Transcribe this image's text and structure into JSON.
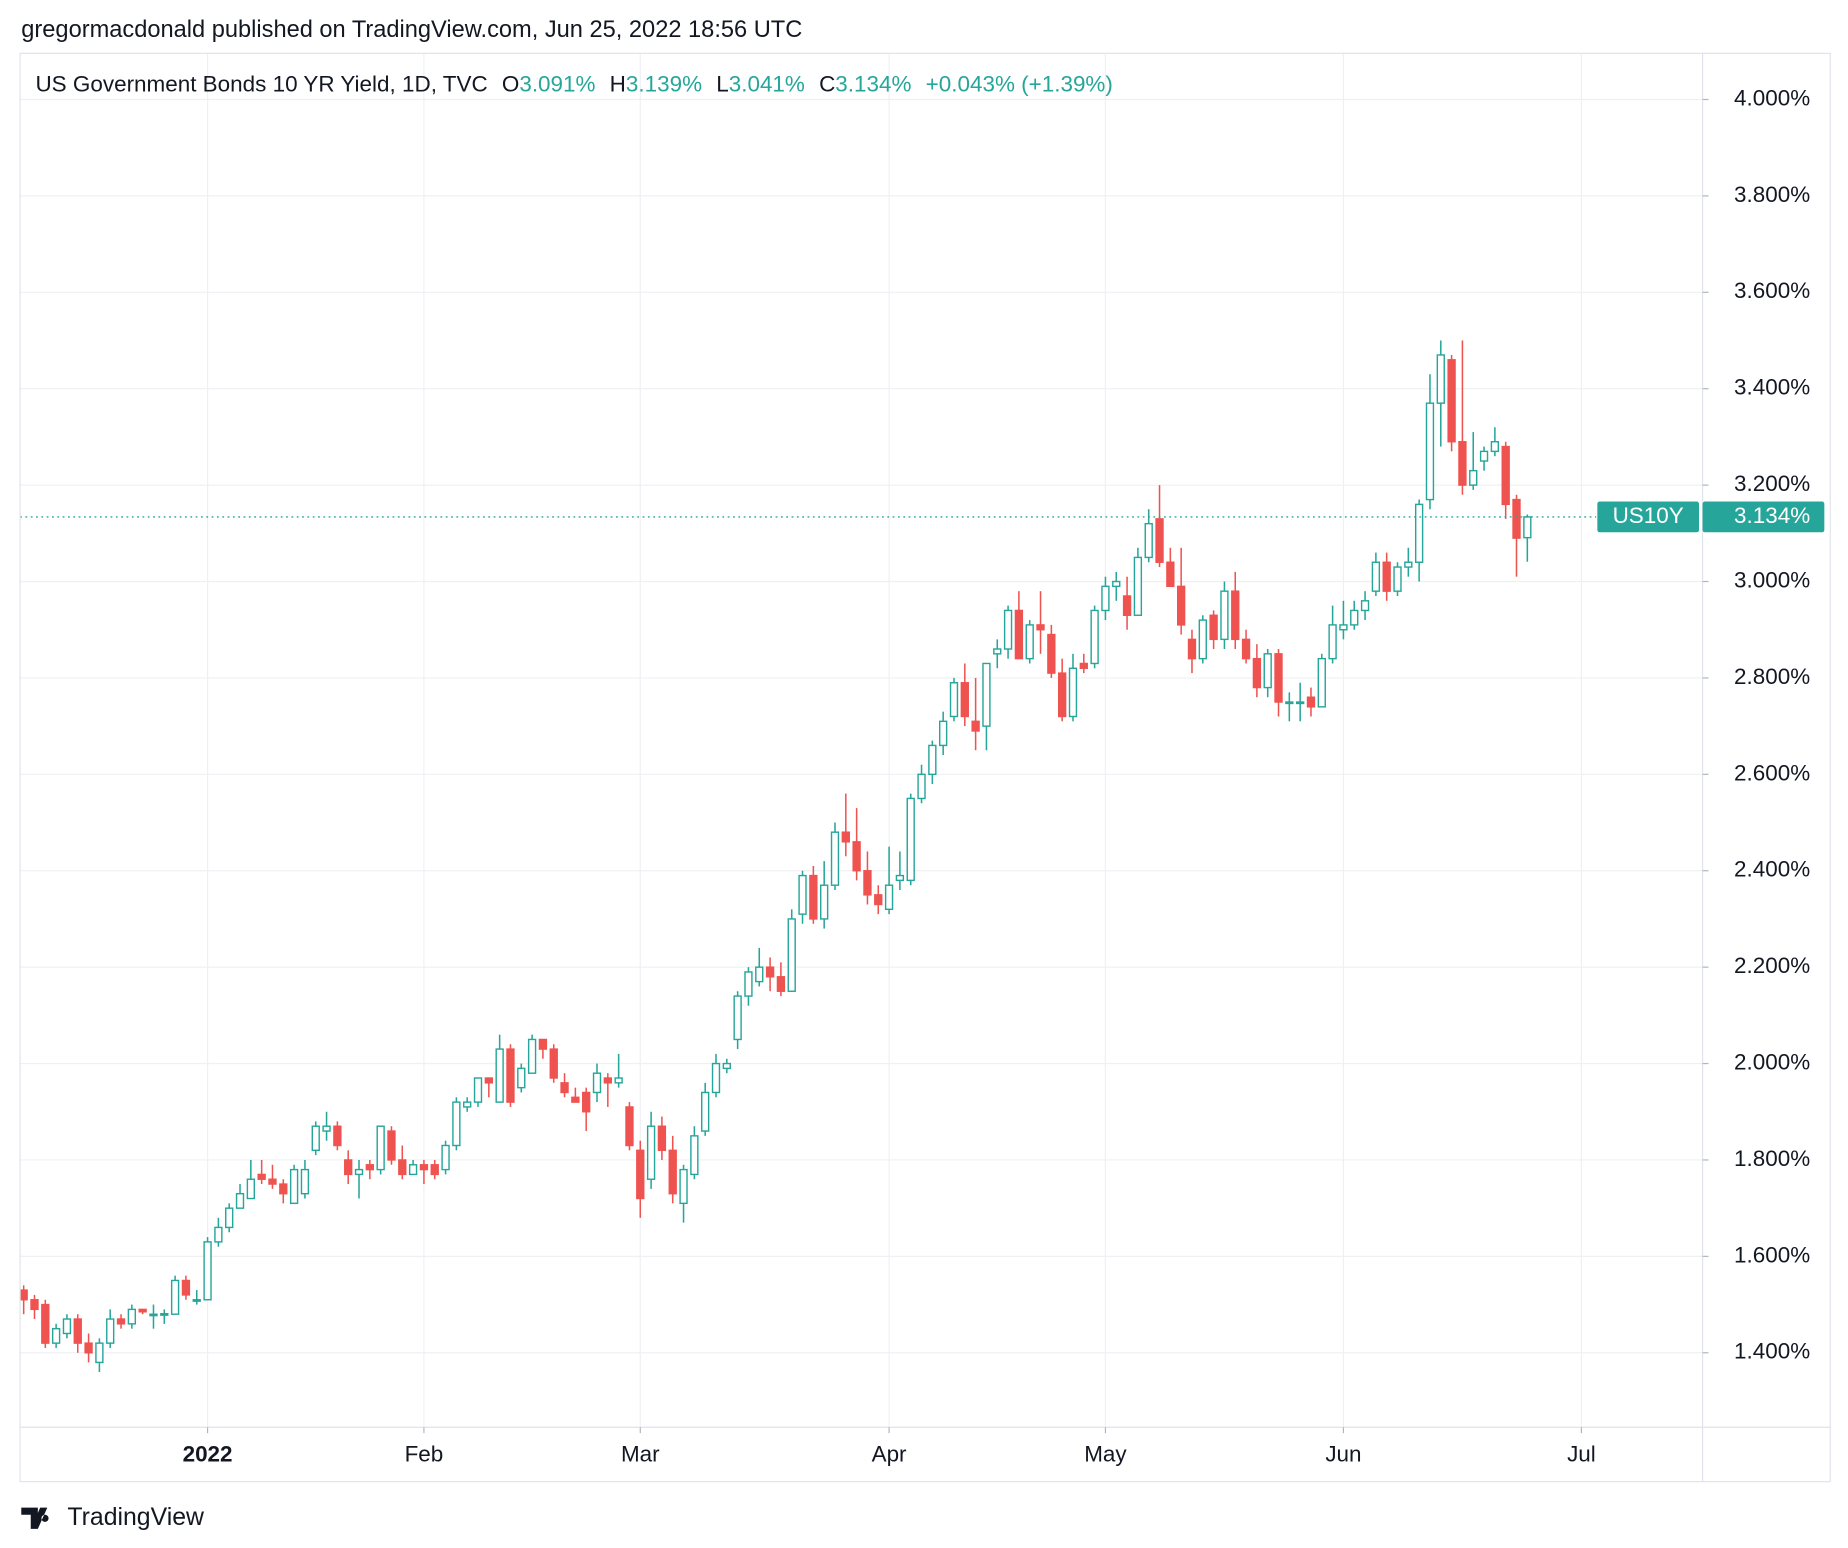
{
  "published": "gregormacdonald published on TradingView.com, Jun 25, 2022 18:56 UTC",
  "footer": "TradingView",
  "legend": {
    "symbol": "US Government Bonds 10 YR Yield, 1D, TVC",
    "open_label": "O",
    "open": "3.091%",
    "high_label": "H",
    "high": "3.139%",
    "low_label": "L",
    "low": "3.041%",
    "close_label": "C",
    "close": "3.134%",
    "change": "+0.043% (+1.39%)"
  },
  "chart_data": {
    "type": "candlestick",
    "up_color": "#26a69a",
    "down_color": "#ef5350",
    "grid": true,
    "xlim": [
      -0.33,
      155.2
    ],
    "xticks": [
      {
        "value": 17,
        "label": "2022"
      },
      {
        "value": 37,
        "label": "Feb"
      },
      {
        "value": 57,
        "label": "Mar"
      },
      {
        "value": 80,
        "label": "Apr"
      },
      {
        "value": 100,
        "label": "May"
      },
      {
        "value": 122,
        "label": "Jun"
      },
      {
        "value": 144,
        "label": "Jul"
      }
    ],
    "ylim": [
      1.2455,
      4.0957
    ],
    "yticks": [
      {
        "value": 1.4,
        "label": "1.400%"
      },
      {
        "value": 1.6,
        "label": "1.600%"
      },
      {
        "value": 1.8,
        "label": "1.800%"
      },
      {
        "value": 2.0,
        "label": "2.000%"
      },
      {
        "value": 2.2,
        "label": "2.200%"
      },
      {
        "value": 2.4,
        "label": "2.400%"
      },
      {
        "value": 2.6,
        "label": "2.600%"
      },
      {
        "value": 2.8,
        "label": "2.800%"
      },
      {
        "value": 3.0,
        "label": "3.000%"
      },
      {
        "value": 3.2,
        "label": "3.200%"
      },
      {
        "value": 3.4,
        "label": "3.400%"
      },
      {
        "value": 3.6,
        "label": "3.600%"
      },
      {
        "value": 3.8,
        "label": "3.800%"
      },
      {
        "value": 4.0,
        "label": "4.000%"
      }
    ],
    "last_price": {
      "name": "US10Y",
      "value": 3.134,
      "value_label": "3.134%",
      "color": "#26a69a"
    },
    "series": [
      {
        "name": "US10Y",
        "open": [
          1.53,
          1.51,
          1.5,
          1.42,
          1.44,
          1.47,
          1.42,
          1.38,
          1.42,
          1.47,
          1.46,
          1.49,
          1.48,
          1.48,
          1.48,
          1.55,
          1.51,
          1.51,
          1.63,
          1.66,
          1.7,
          1.72,
          1.77,
          1.76,
          1.75,
          1.71,
          1.73,
          1.82,
          1.86,
          1.87,
          1.8,
          1.77,
          1.79,
          1.78,
          1.86,
          1.8,
          1.77,
          1.79,
          1.79,
          1.78,
          1.83,
          1.91,
          1.92,
          1.97,
          1.92,
          2.03,
          1.95,
          1.98,
          2.05,
          2.03,
          1.96,
          1.93,
          1.94,
          1.94,
          1.97,
          1.96,
          1.91,
          1.82,
          1.76,
          1.87,
          1.82,
          1.71,
          1.77,
          1.86,
          1.94,
          1.99,
          2.05,
          2.14,
          2.17,
          2.2,
          2.18,
          2.15,
          2.31,
          2.39,
          2.3,
          2.37,
          2.48,
          2.46,
          2.4,
          2.35,
          2.32,
          2.38,
          2.38,
          2.55,
          2.6,
          2.66,
          2.72,
          2.79,
          2.71,
          2.7,
          2.85,
          2.86,
          2.94,
          2.84,
          2.91,
          2.89,
          2.81,
          2.72,
          2.83,
          2.83,
          2.94,
          2.99,
          2.97,
          2.93,
          3.05,
          3.13,
          3.04,
          2.99,
          2.88,
          2.84,
          2.93,
          2.88,
          2.98,
          2.88,
          2.84,
          2.78,
          2.85,
          2.75,
          2.75,
          2.76,
          2.74,
          2.84,
          2.9,
          2.91,
          2.94,
          2.98,
          3.04,
          2.98,
          3.03,
          3.04,
          3.17,
          3.37,
          3.46,
          3.29,
          3.2,
          3.25,
          3.27,
          3.28,
          3.17,
          3.091
        ],
        "high": [
          1.54,
          1.52,
          1.51,
          1.46,
          1.48,
          1.48,
          1.44,
          1.43,
          1.49,
          1.48,
          1.5,
          1.49,
          1.5,
          1.49,
          1.56,
          1.56,
          1.53,
          1.64,
          1.68,
          1.71,
          1.75,
          1.8,
          1.8,
          1.79,
          1.76,
          1.79,
          1.8,
          1.88,
          1.9,
          1.88,
          1.82,
          1.8,
          1.8,
          1.87,
          1.87,
          1.83,
          1.8,
          1.8,
          1.8,
          1.84,
          1.93,
          1.93,
          1.97,
          1.97,
          2.06,
          2.04,
          2.0,
          2.06,
          2.05,
          2.04,
          1.98,
          1.95,
          1.95,
          2.0,
          1.98,
          2.02,
          1.92,
          1.84,
          1.9,
          1.89,
          1.85,
          1.79,
          1.87,
          1.96,
          2.02,
          2.01,
          2.15,
          2.2,
          2.24,
          2.22,
          2.21,
          2.32,
          2.4,
          2.41,
          2.42,
          2.5,
          2.56,
          2.53,
          2.44,
          2.37,
          2.45,
          2.44,
          2.56,
          2.62,
          2.67,
          2.73,
          2.8,
          2.83,
          2.8,
          2.83,
          2.88,
          2.95,
          2.98,
          2.92,
          2.98,
          2.91,
          2.84,
          2.85,
          2.85,
          2.95,
          3.01,
          3.02,
          3.01,
          3.07,
          3.15,
          3.2,
          3.07,
          3.07,
          2.9,
          2.93,
          2.94,
          3.0,
          3.02,
          2.9,
          2.87,
          2.86,
          2.86,
          2.77,
          2.79,
          2.78,
          2.85,
          2.95,
          2.96,
          2.96,
          2.98,
          3.06,
          3.06,
          3.04,
          3.07,
          3.17,
          3.43,
          3.5,
          3.47,
          3.5,
          3.31,
          3.28,
          3.32,
          3.29,
          3.18,
          3.139
        ],
        "low": [
          1.48,
          1.47,
          1.41,
          1.41,
          1.43,
          1.4,
          1.38,
          1.36,
          1.41,
          1.45,
          1.45,
          1.48,
          1.45,
          1.46,
          1.48,
          1.51,
          1.5,
          1.51,
          1.62,
          1.65,
          1.7,
          1.72,
          1.75,
          1.74,
          1.71,
          1.71,
          1.72,
          1.81,
          1.84,
          1.82,
          1.75,
          1.72,
          1.76,
          1.77,
          1.79,
          1.76,
          1.77,
          1.75,
          1.76,
          1.77,
          1.82,
          1.9,
          1.91,
          1.93,
          1.92,
          1.91,
          1.94,
          1.98,
          2.01,
          1.96,
          1.93,
          1.92,
          1.86,
          1.92,
          1.91,
          1.95,
          1.82,
          1.68,
          1.74,
          1.8,
          1.71,
          1.67,
          1.76,
          1.85,
          1.93,
          1.98,
          2.03,
          2.12,
          2.16,
          2.15,
          2.14,
          2.15,
          2.29,
          2.29,
          2.28,
          2.36,
          2.43,
          2.38,
          2.33,
          2.31,
          2.31,
          2.36,
          2.37,
          2.54,
          2.58,
          2.64,
          2.71,
          2.7,
          2.65,
          2.65,
          2.82,
          2.84,
          2.84,
          2.83,
          2.85,
          2.8,
          2.71,
          2.71,
          2.81,
          2.82,
          2.92,
          2.96,
          2.9,
          2.93,
          3.04,
          3.03,
          2.99,
          2.89,
          2.81,
          2.83,
          2.86,
          2.86,
          2.86,
          2.83,
          2.76,
          2.76,
          2.72,
          2.71,
          2.71,
          2.72,
          2.74,
          2.83,
          2.88,
          2.9,
          2.92,
          2.97,
          2.96,
          2.97,
          3.01,
          3.0,
          3.15,
          3.28,
          3.27,
          3.18,
          3.19,
          3.23,
          3.26,
          3.13,
          3.01,
          3.041
        ],
        "close": [
          1.51,
          1.49,
          1.42,
          1.45,
          1.47,
          1.42,
          1.4,
          1.42,
          1.47,
          1.46,
          1.49,
          1.485,
          1.48,
          1.481,
          1.55,
          1.52,
          1.51,
          1.63,
          1.66,
          1.7,
          1.73,
          1.76,
          1.76,
          1.75,
          1.73,
          1.78,
          1.78,
          1.87,
          1.87,
          1.83,
          1.77,
          1.78,
          1.78,
          1.87,
          1.8,
          1.77,
          1.79,
          1.78,
          1.77,
          1.83,
          1.92,
          1.92,
          1.97,
          1.96,
          2.03,
          1.92,
          1.99,
          2.05,
          2.03,
          1.97,
          1.94,
          1.92,
          1.9,
          1.98,
          1.96,
          1.97,
          1.83,
          1.72,
          1.87,
          1.82,
          1.73,
          1.78,
          1.85,
          1.94,
          2.0,
          2.0,
          2.14,
          2.19,
          2.2,
          2.18,
          2.15,
          2.3,
          2.39,
          2.3,
          2.37,
          2.48,
          2.46,
          2.4,
          2.35,
          2.33,
          2.37,
          2.39,
          2.55,
          2.6,
          2.66,
          2.71,
          2.79,
          2.72,
          2.69,
          2.83,
          2.86,
          2.94,
          2.84,
          2.91,
          2.9,
          2.81,
          2.72,
          2.82,
          2.82,
          2.94,
          2.99,
          3.0,
          2.93,
          3.05,
          3.12,
          3.04,
          2.99,
          2.91,
          2.84,
          2.92,
          2.88,
          2.98,
          2.88,
          2.84,
          2.78,
          2.85,
          2.75,
          2.75,
          2.75,
          2.74,
          2.84,
          2.91,
          2.91,
          2.94,
          2.96,
          3.04,
          2.98,
          3.03,
          3.04,
          3.16,
          3.37,
          3.47,
          3.29,
          3.2,
          3.23,
          3.27,
          3.29,
          3.16,
          3.09,
          3.134
        ]
      }
    ]
  }
}
